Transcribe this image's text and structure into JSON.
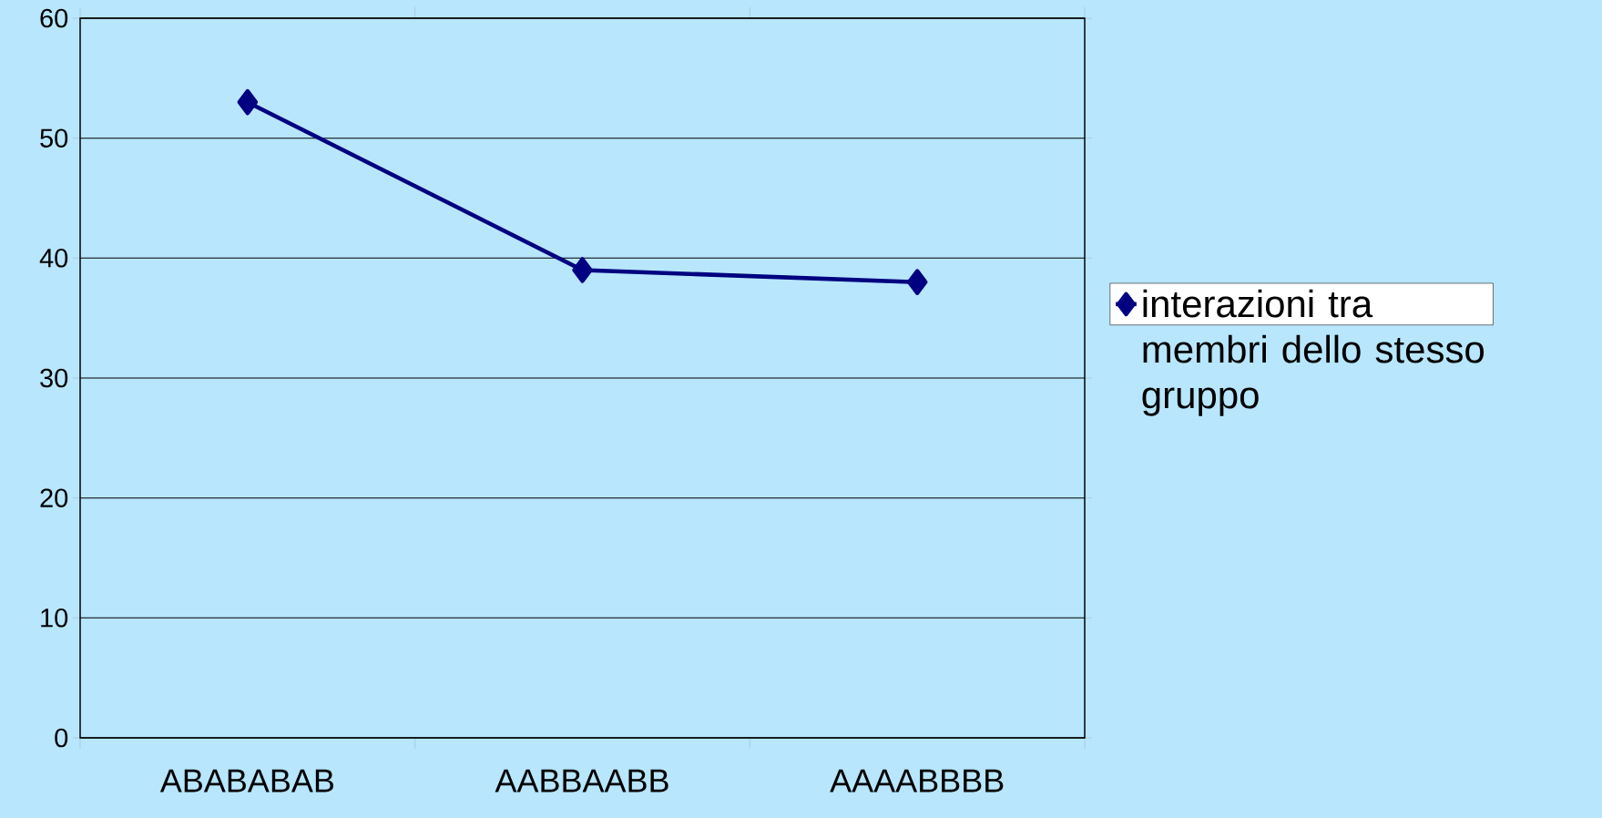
{
  "chart_data": {
    "type": "line",
    "categories": [
      "ABABABAB",
      "AABBAABB",
      "AAAABBBB"
    ],
    "series": [
      {
        "name": "interazioni tra membri dello stesso gruppo",
        "color": "#000080",
        "values": [
          53,
          39,
          38
        ]
      }
    ],
    "ylim": [
      0,
      60
    ],
    "yticks": [
      0,
      10,
      20,
      30,
      40,
      50,
      60
    ],
    "grid": "y",
    "legend": "right",
    "marker": "diamond",
    "line_style": "solid"
  }
}
